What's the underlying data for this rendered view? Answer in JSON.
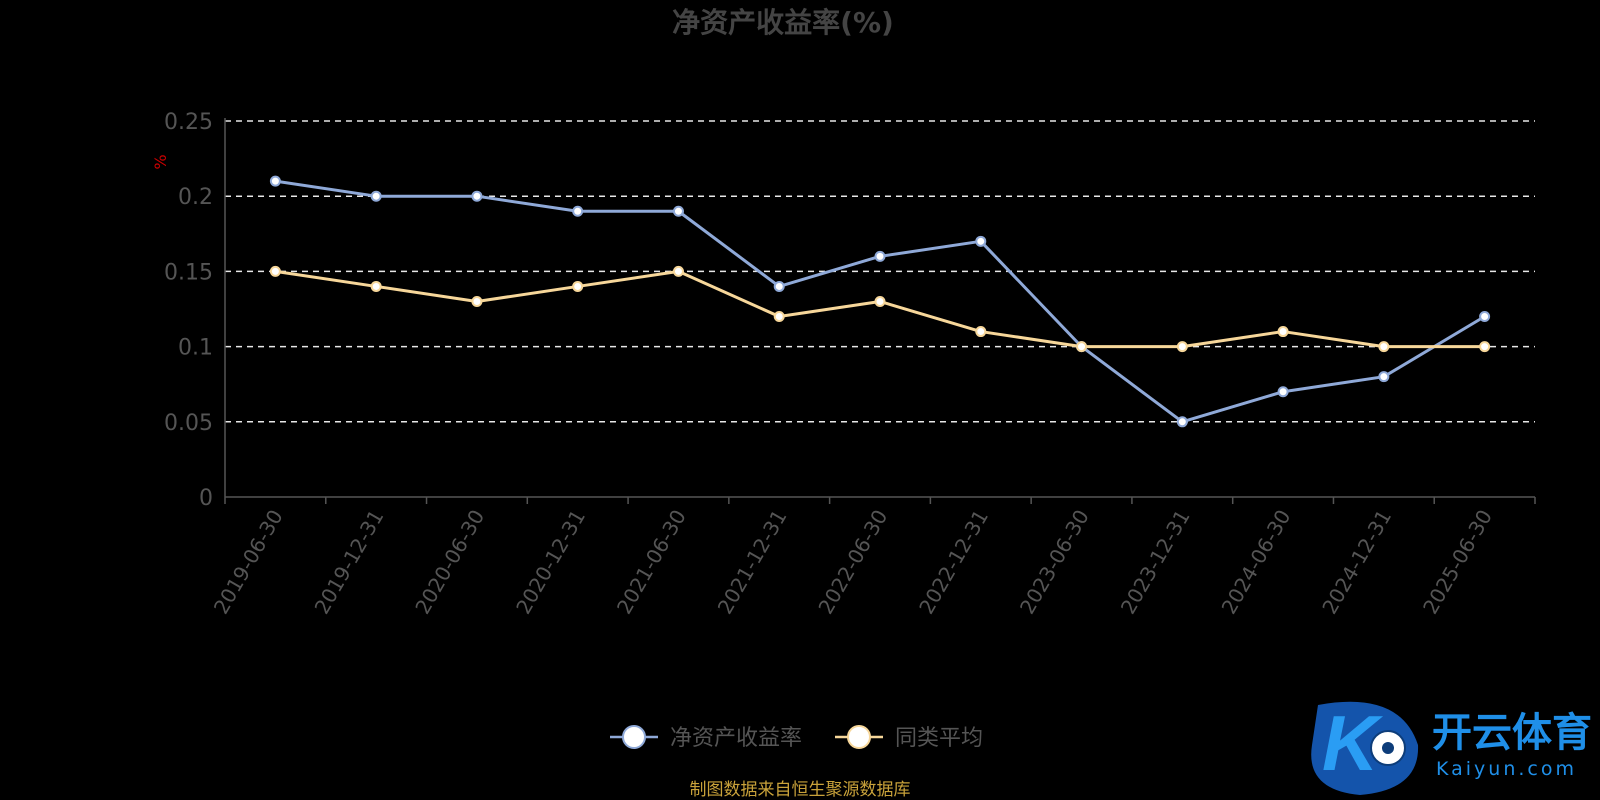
{
  "chart_data": {
    "type": "line",
    "title": "净资产收益率(%)",
    "ylabel": "%",
    "xlabel": "",
    "x": [
      "2019-06-30",
      "2019-12-31",
      "2020-06-30",
      "2020-12-31",
      "2021-06-30",
      "2021-12-31",
      "2022-06-30",
      "2022-12-31",
      "2023-06-30",
      "2023-12-31",
      "2024-06-30",
      "2024-12-31",
      "2025-06-30"
    ],
    "ylim": [
      0,
      0.25
    ],
    "yticks": [
      "0",
      "0.05",
      "0.1",
      "0.15",
      "0.2",
      "0.25"
    ],
    "grid": true,
    "legend_position": "bottom-center",
    "series": [
      {
        "name": "净资产收益率",
        "color": "#8fa9d8",
        "values": [
          0.21,
          0.2,
          0.2,
          0.19,
          0.19,
          0.14,
          0.16,
          0.17,
          0.1,
          0.05,
          0.07,
          0.08,
          0.12
        ]
      },
      {
        "name": "同类平均",
        "color": "#f7d79a",
        "values": [
          0.15,
          0.14,
          0.13,
          0.14,
          0.15,
          0.12,
          0.13,
          0.11,
          0.1,
          0.1,
          0.11,
          0.1,
          0.1
        ]
      }
    ]
  },
  "source": "制图数据来自恒生聚源数据库",
  "watermark": {
    "brand": "开云体育",
    "site": "Kaiyun.com",
    "logo_letter": "K"
  }
}
